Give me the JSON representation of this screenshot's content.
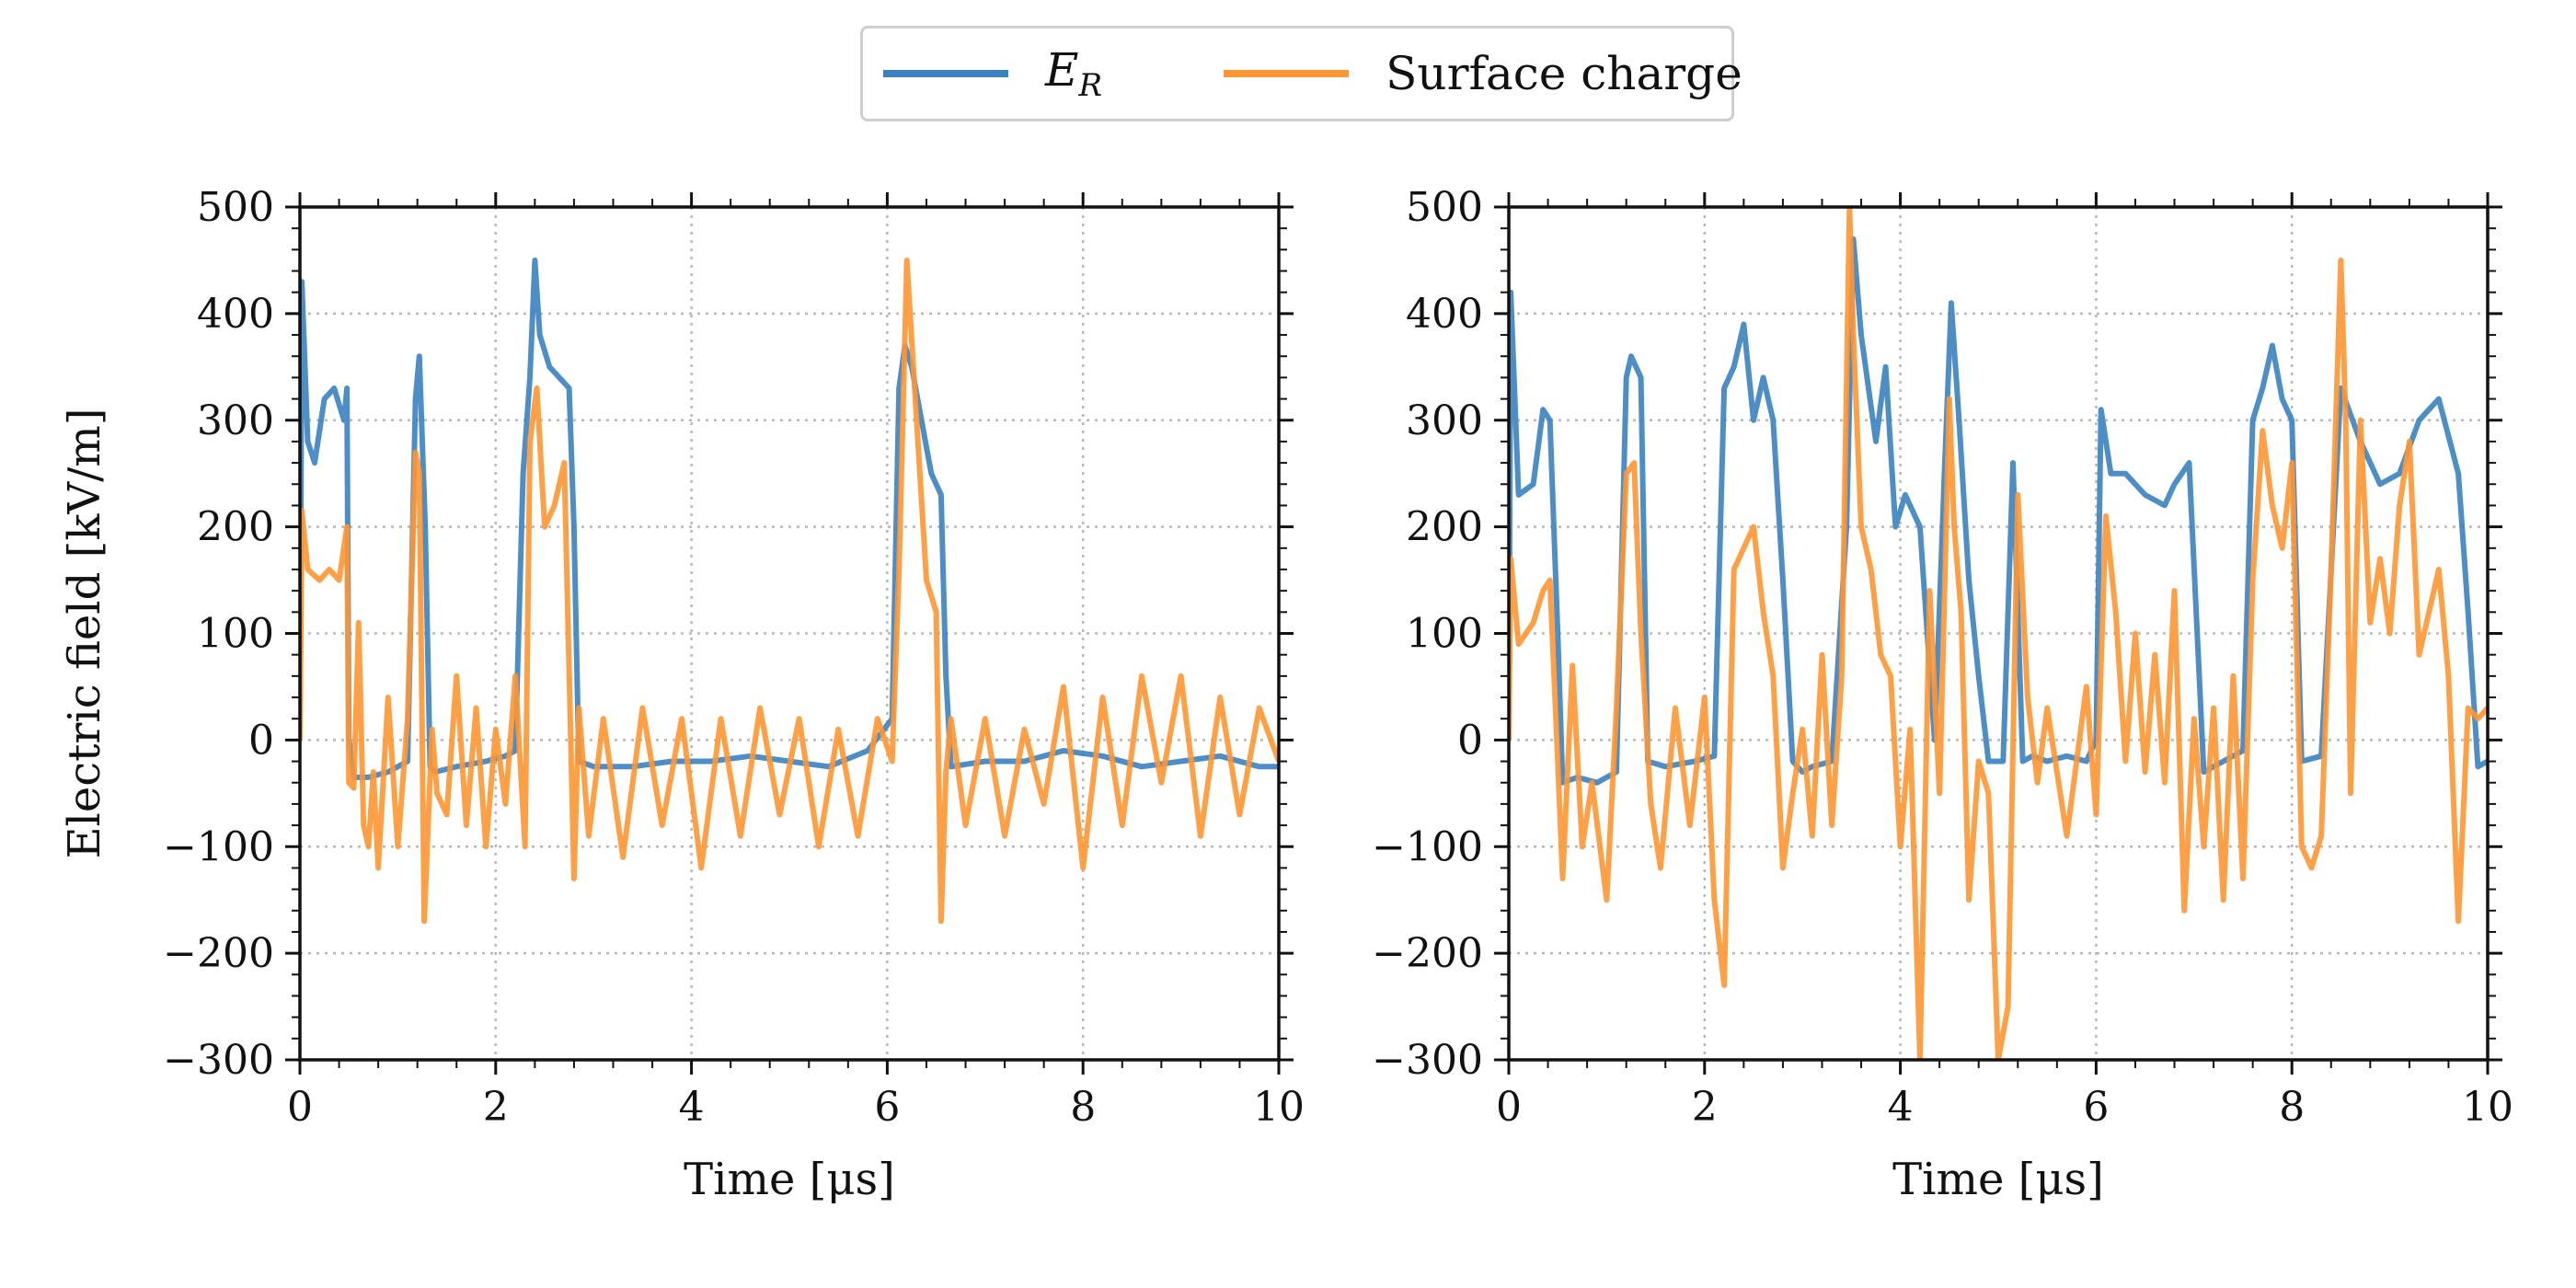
{
  "legend": {
    "placement": "top-center",
    "entries": [
      {
        "label": "E_R",
        "color": "#3a82c1"
      },
      {
        "label": "Surface charge",
        "color": "#ff9633"
      }
    ]
  },
  "chart_data": [
    {
      "type": "line",
      "xlabel": "Time [μs]",
      "ylabel": "Electric field [kV/m]",
      "xlim": [
        0,
        10
      ],
      "ylim": [
        -300,
        500
      ],
      "xticks": [
        "0",
        "2",
        "4",
        "6",
        "8",
        "10"
      ],
      "yticks": [
        "−300",
        "−200",
        "−100",
        "0",
        "100",
        "200",
        "300",
        "400",
        "500"
      ],
      "grid": true,
      "series": [
        {
          "name": "E_R",
          "color": "#3a82c1",
          "x": [
            0,
            0.02,
            0.08,
            0.15,
            0.25,
            0.35,
            0.45,
            0.48,
            0.5,
            0.55,
            0.7,
            0.9,
            1.1,
            1.18,
            1.22,
            1.28,
            1.33,
            1.38,
            1.6,
            1.9,
            2.1,
            2.2,
            2.28,
            2.35,
            2.4,
            2.45,
            2.55,
            2.65,
            2.75,
            2.8,
            2.85,
            3.0,
            3.4,
            3.8,
            4.2,
            4.6,
            5.0,
            5.4,
            5.8,
            6.05,
            6.12,
            6.18,
            6.25,
            6.35,
            6.45,
            6.55,
            6.6,
            6.65,
            7.0,
            7.4,
            7.8,
            8.2,
            8.6,
            9.0,
            9.4,
            9.8,
            10
          ],
          "y": [
            0,
            430,
            280,
            260,
            320,
            330,
            300,
            330,
            0,
            -35,
            -35,
            -30,
            -20,
            320,
            360,
            200,
            -25,
            -30,
            -25,
            -20,
            -15,
            -10,
            250,
            340,
            450,
            380,
            350,
            340,
            330,
            200,
            -20,
            -25,
            -25,
            -20,
            -20,
            -15,
            -20,
            -25,
            -10,
            20,
            330,
            370,
            350,
            300,
            250,
            230,
            60,
            -25,
            -20,
            -20,
            -10,
            -15,
            -25,
            -20,
            -15,
            -25,
            -25
          ]
        },
        {
          "name": "Surface charge",
          "color": "#ff9633",
          "x": [
            0,
            0.02,
            0.08,
            0.2,
            0.3,
            0.4,
            0.48,
            0.5,
            0.55,
            0.6,
            0.65,
            0.7,
            0.75,
            0.8,
            0.9,
            1.0,
            1.1,
            1.18,
            1.22,
            1.27,
            1.35,
            1.4,
            1.5,
            1.6,
            1.7,
            1.8,
            1.9,
            2.0,
            2.1,
            2.2,
            2.3,
            2.35,
            2.42,
            2.5,
            2.6,
            2.7,
            2.8,
            2.85,
            2.95,
            3.1,
            3.3,
            3.5,
            3.7,
            3.9,
            4.1,
            4.3,
            4.5,
            4.7,
            4.9,
            5.1,
            5.3,
            5.5,
            5.7,
            5.9,
            6.05,
            6.12,
            6.2,
            6.3,
            6.4,
            6.5,
            6.55,
            6.6,
            6.65,
            6.8,
            7.0,
            7.2,
            7.4,
            7.6,
            7.8,
            8.0,
            8.2,
            8.4,
            8.6,
            8.8,
            9.0,
            9.2,
            9.4,
            9.6,
            9.8,
            10
          ],
          "y": [
            0,
            215,
            160,
            150,
            160,
            150,
            200,
            -40,
            -45,
            110,
            -80,
            -100,
            -30,
            -120,
            40,
            -100,
            20,
            270,
            250,
            -170,
            10,
            -50,
            -70,
            60,
            -80,
            30,
            -100,
            10,
            -60,
            60,
            -100,
            280,
            330,
            200,
            220,
            260,
            -130,
            30,
            -90,
            20,
            -110,
            30,
            -80,
            20,
            -120,
            20,
            -90,
            30,
            -70,
            20,
            -100,
            10,
            -90,
            20,
            -20,
            160,
            450,
            300,
            150,
            120,
            -170,
            -30,
            20,
            -80,
            20,
            -90,
            10,
            -60,
            50,
            -120,
            40,
            -80,
            60,
            -40,
            60,
            -90,
            40,
            -70,
            30,
            -20
          ]
        }
      ]
    },
    {
      "type": "line",
      "xlabel": "Time [μs]",
      "ylabel": "",
      "xlim": [
        0,
        10
      ],
      "ylim": [
        -300,
        500
      ],
      "xticks": [
        "0",
        "2",
        "4",
        "6",
        "8",
        "10"
      ],
      "yticks": [
        "−300",
        "−200",
        "−100",
        "0",
        "100",
        "200",
        "300",
        "400",
        "500"
      ],
      "grid": true,
      "series": [
        {
          "name": "E_R",
          "color": "#3a82c1",
          "x": [
            0,
            0.02,
            0.1,
            0.25,
            0.35,
            0.42,
            0.5,
            0.55,
            0.7,
            0.9,
            1.1,
            1.2,
            1.25,
            1.35,
            1.42,
            1.6,
            1.9,
            2.1,
            2.2,
            2.3,
            2.4,
            2.5,
            2.6,
            2.7,
            2.8,
            2.9,
            3.0,
            3.1,
            3.3,
            3.45,
            3.52,
            3.6,
            3.75,
            3.85,
            3.95,
            4.05,
            4.2,
            4.35,
            4.45,
            4.52,
            4.6,
            4.7,
            4.8,
            4.9,
            5.05,
            5.15,
            5.25,
            5.35,
            5.5,
            5.7,
            5.9,
            6.0,
            6.05,
            6.15,
            6.3,
            6.5,
            6.7,
            6.8,
            6.95,
            7.1,
            7.3,
            7.5,
            7.6,
            7.7,
            7.8,
            7.9,
            8.0,
            8.1,
            8.3,
            8.5,
            8.7,
            8.9,
            9.1,
            9.3,
            9.5,
            9.7,
            9.8,
            9.9,
            10
          ],
          "y": [
            0,
            420,
            230,
            240,
            310,
            300,
            100,
            -40,
            -35,
            -40,
            -30,
            340,
            360,
            340,
            -20,
            -25,
            -20,
            -15,
            330,
            350,
            390,
            300,
            340,
            300,
            150,
            -20,
            -30,
            -25,
            -20,
            200,
            470,
            380,
            280,
            350,
            200,
            230,
            200,
            0,
            250,
            410,
            300,
            150,
            60,
            -20,
            -20,
            260,
            -20,
            -15,
            -20,
            -15,
            -20,
            0,
            310,
            250,
            250,
            230,
            220,
            240,
            260,
            -30,
            -20,
            -10,
            300,
            330,
            370,
            320,
            300,
            -20,
            -15,
            330,
            280,
            240,
            250,
            300,
            320,
            250,
            120,
            -25,
            -20
          ]
        },
        {
          "name": "Surface charge",
          "color": "#ff9633",
          "x": [
            0,
            0.02,
            0.1,
            0.25,
            0.35,
            0.42,
            0.5,
            0.55,
            0.65,
            0.75,
            0.85,
            1.0,
            1.1,
            1.2,
            1.28,
            1.35,
            1.45,
            1.55,
            1.7,
            1.85,
            2.0,
            2.1,
            2.2,
            2.3,
            2.4,
            2.5,
            2.6,
            2.7,
            2.8,
            2.9,
            3.0,
            3.1,
            3.2,
            3.3,
            3.4,
            3.48,
            3.52,
            3.6,
            3.7,
            3.8,
            3.9,
            4.0,
            4.1,
            4.2,
            4.3,
            4.4,
            4.5,
            4.55,
            4.62,
            4.7,
            4.8,
            4.9,
            5.0,
            5.1,
            5.2,
            5.3,
            5.4,
            5.5,
            5.7,
            5.9,
            6.0,
            6.1,
            6.2,
            6.3,
            6.4,
            6.5,
            6.6,
            6.7,
            6.8,
            6.9,
            7.0,
            7.1,
            7.2,
            7.3,
            7.4,
            7.5,
            7.6,
            7.7,
            7.8,
            7.9,
            8.0,
            8.1,
            8.2,
            8.3,
            8.4,
            8.5,
            8.55,
            8.6,
            8.7,
            8.8,
            8.9,
            9.0,
            9.1,
            9.2,
            9.3,
            9.4,
            9.5,
            9.6,
            9.7,
            9.8,
            9.9,
            10
          ],
          "y": [
            0,
            170,
            90,
            110,
            140,
            150,
            -20,
            -130,
            70,
            -100,
            -40,
            -150,
            30,
            250,
            260,
            100,
            -60,
            -120,
            30,
            -80,
            40,
            -150,
            -230,
            160,
            180,
            200,
            120,
            60,
            -120,
            -50,
            10,
            -90,
            80,
            -80,
            60,
            500,
            380,
            200,
            160,
            80,
            60,
            -100,
            10,
            -300,
            140,
            -50,
            320,
            200,
            120,
            -150,
            -20,
            -50,
            -300,
            -250,
            230,
            40,
            -40,
            30,
            -90,
            50,
            -70,
            210,
            120,
            -20,
            100,
            -30,
            80,
            -40,
            140,
            -160,
            20,
            -100,
            30,
            -150,
            60,
            -130,
            150,
            290,
            220,
            180,
            260,
            -100,
            -120,
            -90,
            160,
            450,
            300,
            -50,
            300,
            110,
            170,
            100,
            220,
            280,
            80,
            120,
            160,
            60,
            -170,
            30,
            20,
            30
          ]
        }
      ]
    }
  ]
}
